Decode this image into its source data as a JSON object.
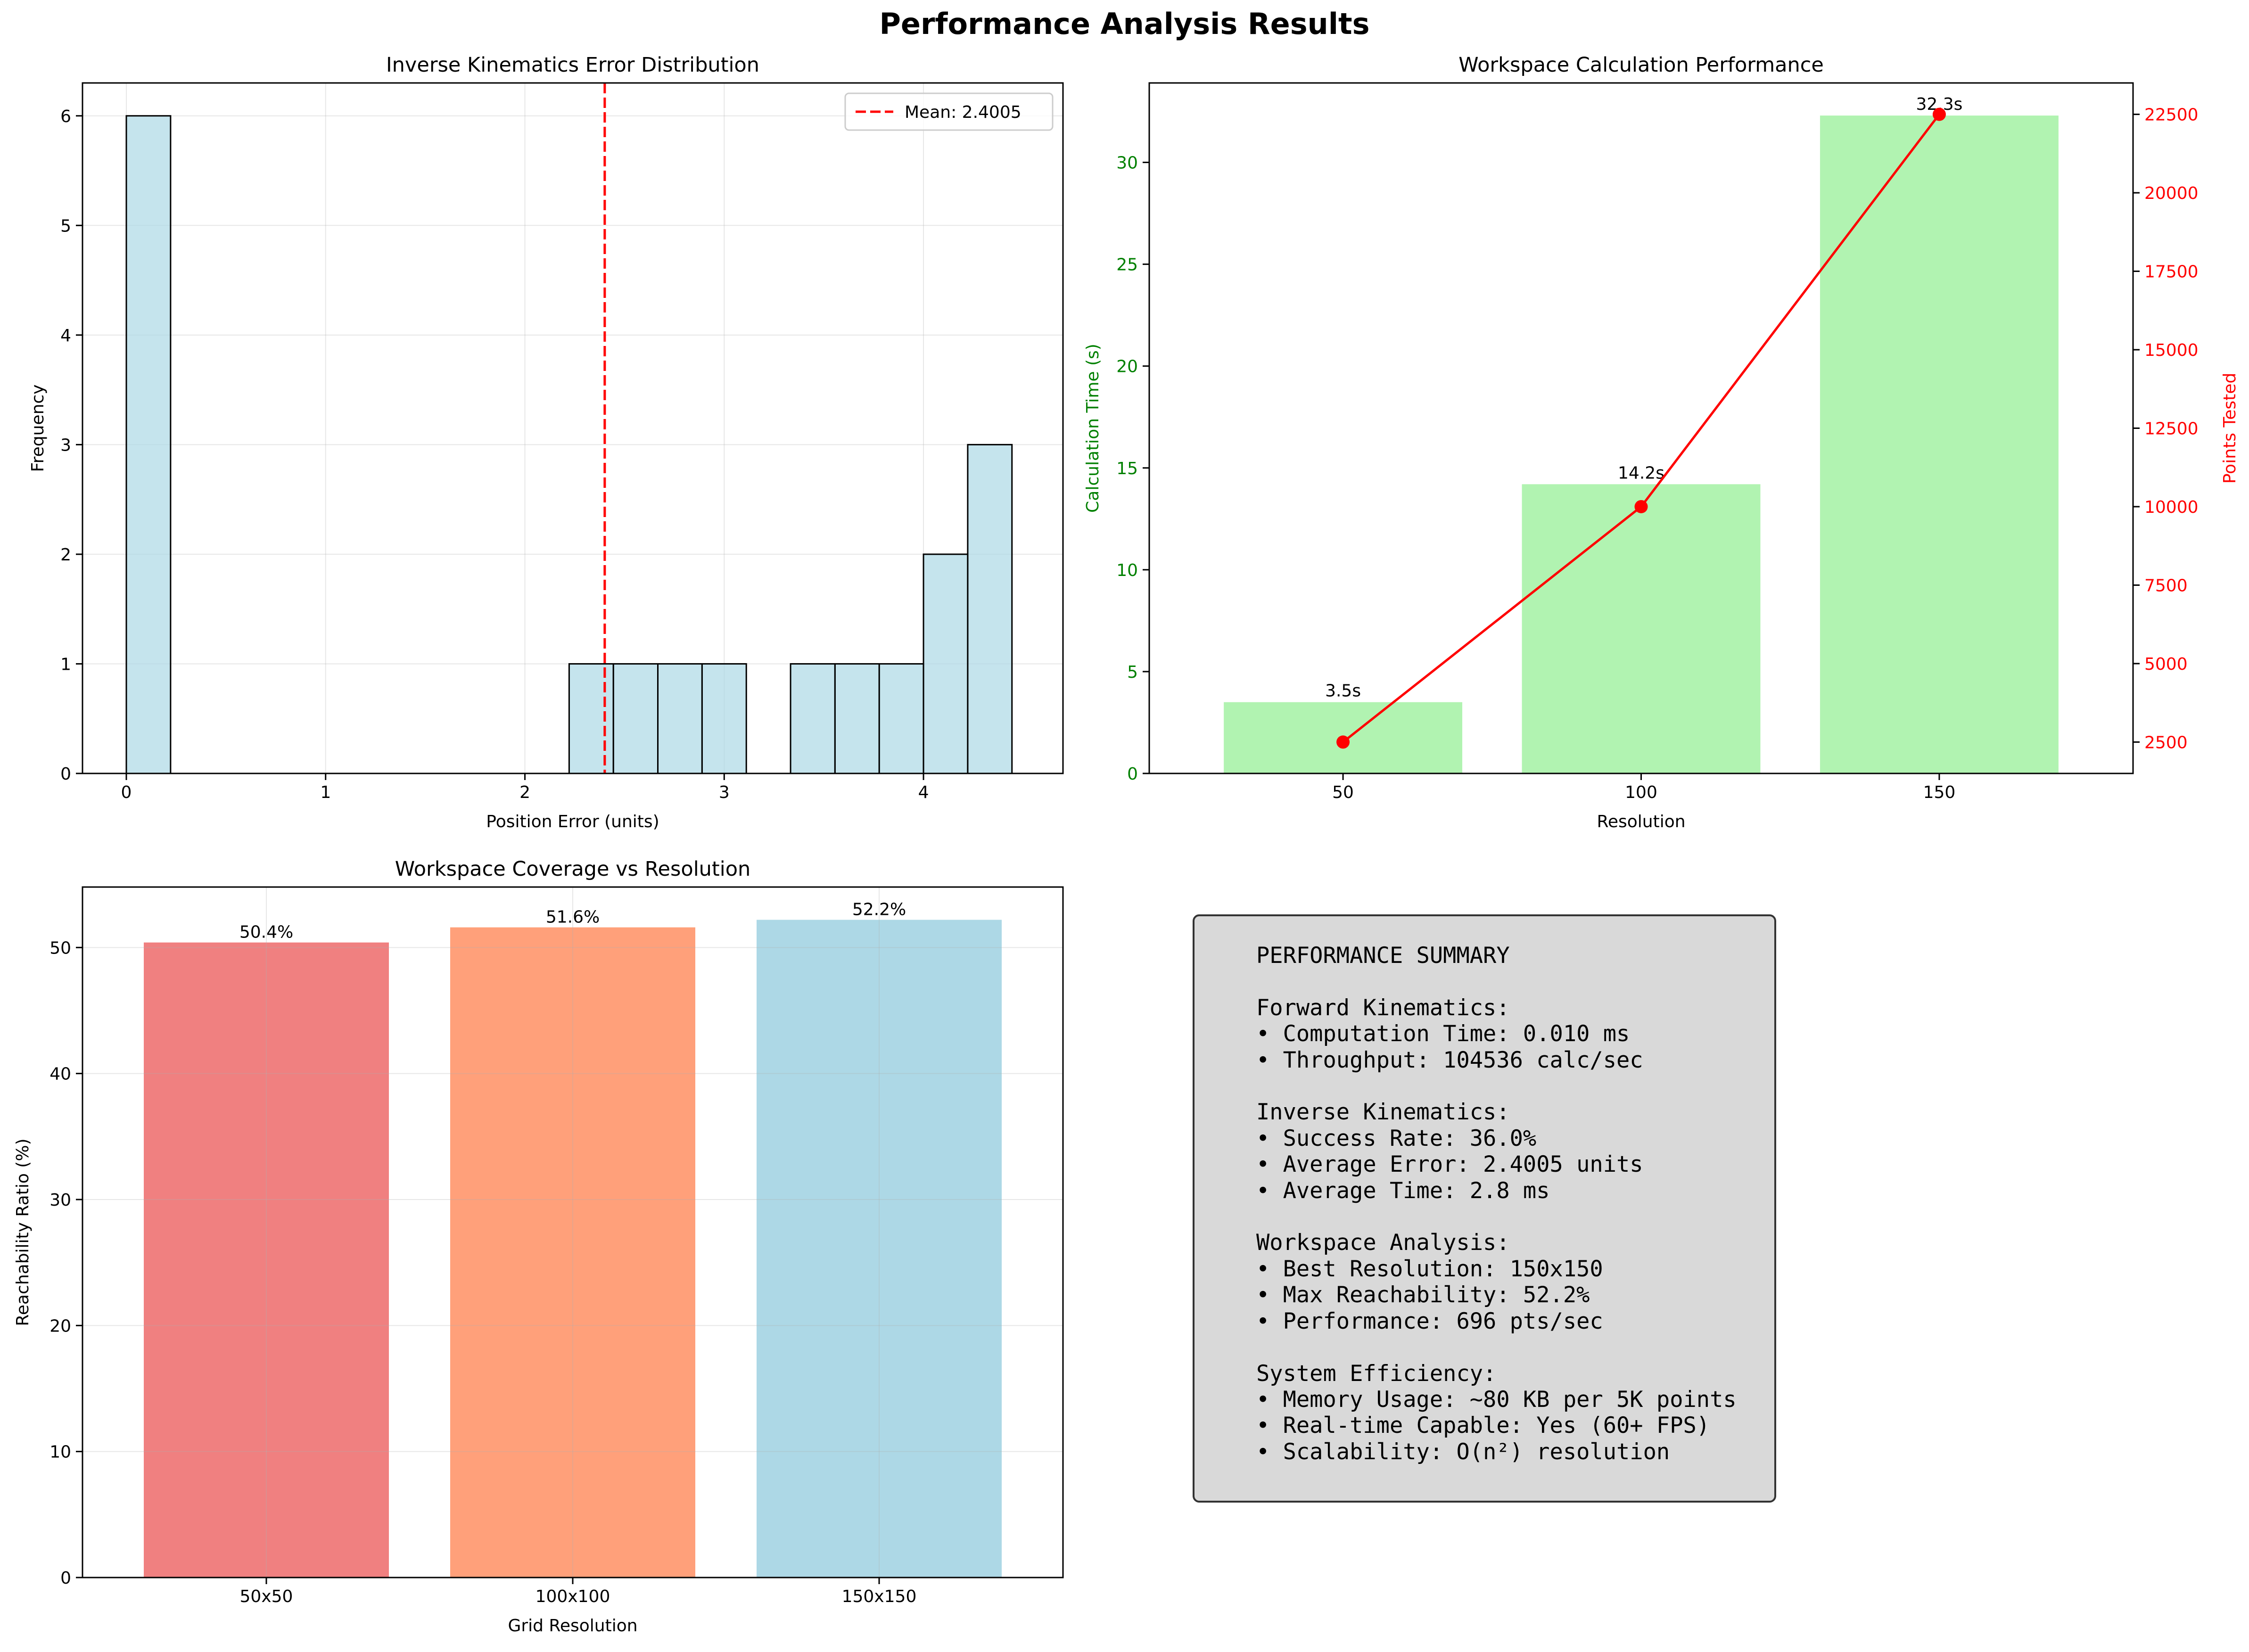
{
  "figure": {
    "suptitle": "Performance Analysis Results"
  },
  "chart_data": [
    {
      "type": "bar",
      "title": "Inverse Kinematics Error Distribution",
      "xlabel": "Position Error (units)",
      "ylabel": "Frequency",
      "xlim": [
        -0.22,
        4.7
      ],
      "ylim": [
        0,
        6.3
      ],
      "xticks": [
        0,
        1,
        2,
        3,
        4
      ],
      "yticks": [
        0,
        1,
        2,
        3,
        4,
        5,
        6
      ],
      "grid": true,
      "bins": [
        {
          "x0": 0.0,
          "x1": 0.222,
          "count": 6
        },
        {
          "x0": 2.222,
          "x1": 2.444,
          "count": 1
        },
        {
          "x0": 2.444,
          "x1": 2.667,
          "count": 1
        },
        {
          "x0": 2.667,
          "x1": 2.889,
          "count": 1
        },
        {
          "x0": 2.889,
          "x1": 3.111,
          "count": 1
        },
        {
          "x0": 3.333,
          "x1": 3.556,
          "count": 1
        },
        {
          "x0": 3.556,
          "x1": 3.778,
          "count": 1
        },
        {
          "x0": 3.778,
          "x1": 4.0,
          "count": 1
        },
        {
          "x0": 4.0,
          "x1": 4.222,
          "count": 2
        },
        {
          "x0": 4.222,
          "x1": 4.444,
          "count": 3
        }
      ],
      "mean_line": {
        "value": 2.4005,
        "label": "Mean: 2.4005",
        "color": "#ff0000"
      },
      "legend": {
        "position": "top-right"
      },
      "bar_color": "#add8e6"
    },
    {
      "type": "bar",
      "title": "Workspace Calculation Performance",
      "xlabel": "Resolution",
      "ylabel": "Calculation Time (s)",
      "ylabel_right": "Points Tested",
      "categories": [
        "50",
        "100",
        "150"
      ],
      "ylim": [
        0,
        33.9
      ],
      "yticks": [
        0,
        5,
        10,
        15,
        20,
        25,
        30
      ],
      "ylim_right": [
        1500,
        23500
      ],
      "yticks_right": [
        2500,
        5000,
        7500,
        10000,
        12500,
        15000,
        17500,
        20000,
        22500
      ],
      "series": [
        {
          "values": [
            3.5,
            14.2,
            32.3
          ],
          "labels": [
            "3.5s",
            "14.2s",
            "32.3s"
          ],
          "color": "#90ee90",
          "axis": "left"
        },
        {
          "values": [
            2500,
            10000,
            22500
          ],
          "color": "#ff0000",
          "axis": "right",
          "type": "line"
        }
      ],
      "ylabel_color": "#008000",
      "ylabel_right_color": "#ff0000"
    },
    {
      "type": "bar",
      "title": "Workspace Coverage vs Resolution",
      "xlabel": "Grid Resolution",
      "ylabel": "Reachability Ratio (%)",
      "categories": [
        "50x50",
        "100x100",
        "150x150"
      ],
      "values": [
        50.4,
        51.6,
        52.2
      ],
      "labels": [
        "50.4%",
        "51.6%",
        "52.2%"
      ],
      "colors": [
        "#f08080",
        "#ffa07a",
        "#add8e6"
      ],
      "ylim": [
        0,
        54.8
      ],
      "yticks": [
        0,
        10,
        20,
        30,
        40,
        50
      ],
      "grid": true
    }
  ],
  "summary": {
    "text": "PERFORMANCE SUMMARY\n\nForward Kinematics:\n• Computation Time: 0.010 ms\n• Throughput: 104536 calc/sec\n\nInverse Kinematics:\n• Success Rate: 36.0%\n• Average Error: 2.4005 units\n• Average Time: 2.8 ms\n\nWorkspace Analysis:\n• Best Resolution: 150x150\n• Max Reachability: 52.2%\n• Performance: 696 pts/sec\n\nSystem Efficiency:\n• Memory Usage: ~80 KB per 5K points\n• Real-time Capable: Yes (60+ FPS)\n• Scalability: O(n²) resolution"
  }
}
